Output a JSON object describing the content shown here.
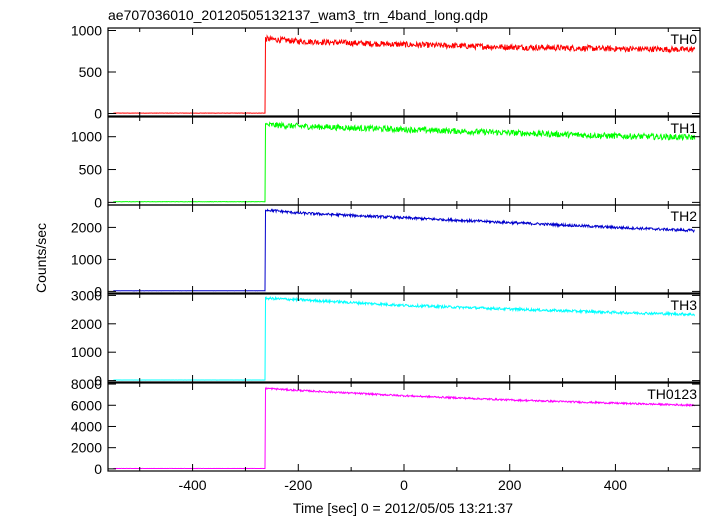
{
  "chart_data": {
    "type": "line",
    "title": "ae707036010_20120505132137_wam3_trn_4band_long.qdp",
    "xlabel": "Time [sec] 0 = 2012/05/05 13:21:37",
    "ylabel": "Counts/sec",
    "xlim": [
      -560,
      560
    ],
    "xticks": [
      -400,
      -200,
      0,
      200,
      400
    ],
    "grid": false,
    "panels": [
      {
        "name": "TH0",
        "color": "#ff0000",
        "ylim": [
          -30,
          1030
        ],
        "yticks": [
          0,
          500,
          1000
        ],
        "series": {
          "x": [
            -550,
            -263,
            -262,
            -200,
            0,
            200,
            400,
            550
          ],
          "y": [
            5,
            5,
            900,
            870,
            830,
            800,
            780,
            770
          ]
        },
        "noise": 35
      },
      {
        "name": "TH1",
        "color": "#00ff00",
        "ylim": [
          -40,
          1300
        ],
        "yticks": [
          0,
          500,
          1000
        ],
        "series": {
          "x": [
            -550,
            -263,
            -262,
            -200,
            0,
            200,
            400,
            550
          ],
          "y": [
            10,
            10,
            1180,
            1160,
            1110,
            1060,
            1010,
            990
          ]
        },
        "noise": 45
      },
      {
        "name": "TH2",
        "color": "#0000cc",
        "ylim": [
          -50,
          2700
        ],
        "yticks": [
          0,
          1000,
          2000
        ],
        "series": {
          "x": [
            -550,
            -263,
            -262,
            -200,
            0,
            200,
            400,
            550
          ],
          "y": [
            20,
            20,
            2550,
            2450,
            2300,
            2150,
            2000,
            1900
          ]
        },
        "noise": 40
      },
      {
        "name": "TH3",
        "color": "#00ffff",
        "ylim": [
          -50,
          3050
        ],
        "yticks": [
          0,
          1000,
          2000,
          3000
        ],
        "series": {
          "x": [
            -550,
            -263,
            -262,
            -200,
            0,
            200,
            400,
            550
          ],
          "y": [
            20,
            20,
            2900,
            2850,
            2650,
            2520,
            2400,
            2330
          ]
        },
        "noise": 45
      },
      {
        "name": "TH0123",
        "color": "#ff00ff",
        "ylim": [
          -200,
          8100
        ],
        "yticks": [
          0,
          2000,
          4000,
          6000,
          8000
        ],
        "series": {
          "x": [
            -550,
            -263,
            -262,
            -200,
            0,
            200,
            400,
            550
          ],
          "y": [
            40,
            40,
            7600,
            7400,
            6900,
            6500,
            6200,
            6000
          ]
        },
        "noise": 80
      }
    ]
  }
}
